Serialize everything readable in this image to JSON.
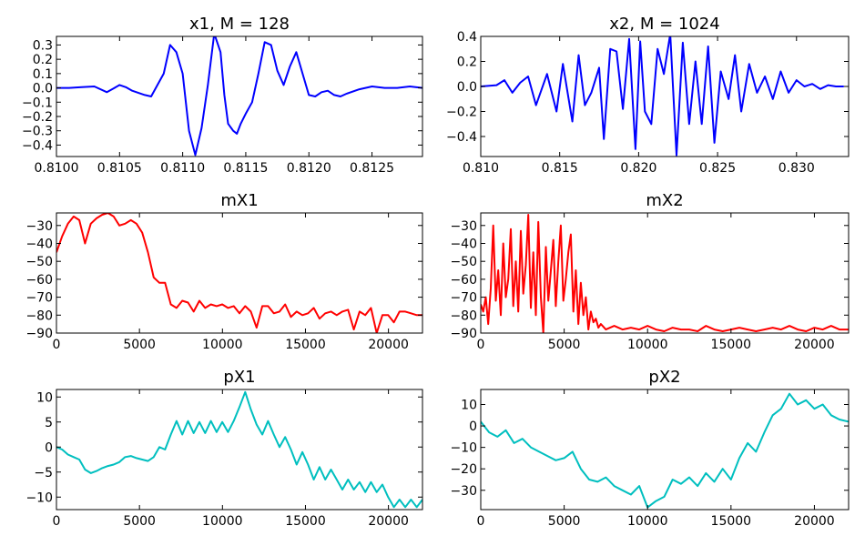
{
  "figure": {
    "background": "#ffffff"
  },
  "chart_data": [
    {
      "id": "x1",
      "type": "line",
      "title": "x1, M = 128",
      "color": "#0000ff",
      "xlim": [
        0.81,
        0.8129
      ],
      "ylim": [
        -0.48,
        0.36
      ],
      "xticks": [
        0.81,
        0.8105,
        0.811,
        0.8115,
        0.812,
        0.8125
      ],
      "xtick_labels": [
        "0.8100",
        "0.8105",
        "0.8110",
        "0.8115",
        "0.8120",
        "0.8125"
      ],
      "yticks": [
        0.3,
        0.2,
        0.1,
        0.0,
        -0.1,
        -0.2,
        -0.3,
        -0.4
      ],
      "ytick_labels": [
        "0.3",
        "0.2",
        "0.1",
        "0.0",
        "−0.1",
        "−0.2",
        "−0.3",
        "−0.4"
      ],
      "series": [
        {
          "x": [
            0.81,
            0.8101,
            0.8102,
            0.8103,
            0.8104,
            0.81045,
            0.8105,
            0.81055,
            0.8106,
            0.8107,
            0.81075,
            0.81085,
            0.8109,
            0.81095,
            0.811,
            0.81105,
            0.8111,
            0.81115,
            0.8112,
            0.81125,
            0.8113,
            0.81133,
            0.81136,
            0.8114,
            0.81143,
            0.81146,
            0.8115,
            0.81155,
            0.8116,
            0.81165,
            0.8117,
            0.81175,
            0.8118,
            0.81185,
            0.8119,
            0.81195,
            0.812,
            0.81205,
            0.8121,
            0.81215,
            0.8122,
            0.81225,
            0.8123,
            0.8124,
            0.8125,
            0.8126,
            0.8127,
            0.8128,
            0.8129
          ],
          "y": [
            0.0,
            0.0,
            0.005,
            0.01,
            -0.03,
            -0.005,
            0.02,
            0.005,
            -0.02,
            -0.05,
            -0.06,
            0.1,
            0.3,
            0.25,
            0.1,
            -0.3,
            -0.47,
            -0.28,
            0.02,
            0.38,
            0.25,
            -0.05,
            -0.25,
            -0.3,
            -0.32,
            -0.25,
            -0.18,
            -0.1,
            0.1,
            0.32,
            0.3,
            0.12,
            0.02,
            0.15,
            0.25,
            0.1,
            -0.05,
            -0.06,
            -0.03,
            -0.02,
            -0.05,
            -0.06,
            -0.04,
            -0.01,
            0.01,
            0.0,
            0.0,
            0.01,
            0.0
          ]
        }
      ]
    },
    {
      "id": "x2",
      "type": "line",
      "title": "x2, M = 1024",
      "color": "#0000ff",
      "xlim": [
        0.81,
        0.8333
      ],
      "ylim": [
        -0.56,
        0.4
      ],
      "xticks": [
        0.81,
        0.815,
        0.82,
        0.825,
        0.83
      ],
      "xtick_labels": [
        "0.810",
        "0.815",
        "0.820",
        "0.825",
        "0.830"
      ],
      "yticks": [
        0.4,
        0.2,
        0.0,
        -0.2,
        -0.4
      ],
      "ytick_labels": [
        "0.4",
        "0.2",
        "0.0",
        "−0.2",
        "−0.4"
      ],
      "series": [
        {
          "x": [
            0.81,
            0.811,
            0.8115,
            0.812,
            0.8125,
            0.813,
            0.8135,
            0.8142,
            0.8148,
            0.8152,
            0.8158,
            0.8162,
            0.8166,
            0.817,
            0.8175,
            0.8178,
            0.8182,
            0.8186,
            0.819,
            0.8194,
            0.8198,
            0.8201,
            0.8204,
            0.8208,
            0.8212,
            0.8216,
            0.822,
            0.8224,
            0.8228,
            0.8232,
            0.8236,
            0.824,
            0.8244,
            0.8248,
            0.8252,
            0.8257,
            0.8261,
            0.8265,
            0.827,
            0.8275,
            0.828,
            0.8285,
            0.829,
            0.8295,
            0.83,
            0.8305,
            0.831,
            0.8315,
            0.832,
            0.8325,
            0.833
          ],
          "y": [
            0.0,
            0.01,
            0.05,
            -0.05,
            0.03,
            0.08,
            -0.15,
            0.1,
            -0.2,
            0.18,
            -0.28,
            0.25,
            -0.15,
            -0.05,
            0.15,
            -0.42,
            0.3,
            0.28,
            -0.18,
            0.38,
            -0.5,
            0.36,
            -0.2,
            -0.3,
            0.3,
            0.1,
            0.42,
            -0.55,
            0.35,
            -0.3,
            0.2,
            -0.3,
            0.32,
            -0.45,
            0.12,
            -0.1,
            0.25,
            -0.2,
            0.18,
            -0.05,
            0.08,
            -0.1,
            0.12,
            -0.05,
            0.05,
            0.0,
            0.02,
            -0.02,
            0.01,
            0.0,
            0.0
          ]
        }
      ]
    },
    {
      "id": "mX1",
      "type": "line",
      "title": "mX1",
      "color": "#ff0000",
      "xlim": [
        0,
        22050
      ],
      "ylim": [
        -90,
        -23
      ],
      "xticks": [
        0,
        5000,
        10000,
        15000,
        20000
      ],
      "xtick_labels": [
        "0",
        "5000",
        "10000",
        "15000",
        "20000"
      ],
      "yticks": [
        -30,
        -40,
        -50,
        -60,
        -70,
        -80,
        -90
      ],
      "ytick_labels": [
        "−30",
        "−40",
        "−50",
        "−60",
        "−70",
        "−80",
        "−90"
      ],
      "series": [
        {
          "x": [
            0,
            345,
            689,
            1034,
            1378,
            1723,
            2067,
            2412,
            2756,
            3101,
            3445,
            3790,
            4134,
            4479,
            4823,
            5168,
            5512,
            5857,
            6201,
            6546,
            6890,
            7235,
            7579,
            7924,
            8268,
            8613,
            8957,
            9302,
            9646,
            9991,
            10335,
            10680,
            11024,
            11369,
            11713,
            12058,
            12402,
            12747,
            13091,
            13436,
            13780,
            14125,
            14469,
            14814,
            15158,
            15503,
            15847,
            16192,
            16536,
            16881,
            17225,
            17570,
            17914,
            18259,
            18603,
            18948,
            19292,
            19637,
            19981,
            20326,
            20670,
            21015,
            21359,
            21704,
            22050
          ],
          "y": [
            -45,
            -36,
            -29,
            -25,
            -27,
            -40,
            -29,
            -26,
            -24,
            -23,
            -25,
            -30,
            -29,
            -27,
            -29,
            -34,
            -45,
            -59,
            -62,
            -62,
            -74,
            -76,
            -72,
            -73,
            -78,
            -72,
            -76,
            -74,
            -75,
            -74,
            -76,
            -75,
            -79,
            -75,
            -78,
            -87,
            -75,
            -75,
            -79,
            -78,
            -74,
            -81,
            -78,
            -80,
            -79,
            -76,
            -82,
            -79,
            -78,
            -80,
            -78,
            -77,
            -88,
            -78,
            -80,
            -76,
            -90,
            -80,
            -80,
            -84,
            -78,
            -78,
            -79,
            -80,
            -80
          ]
        }
      ]
    },
    {
      "id": "mX2",
      "type": "line",
      "title": "mX2",
      "color": "#ff0000",
      "xlim": [
        0,
        22050
      ],
      "ylim": [
        -90,
        -23
      ],
      "xticks": [
        0,
        5000,
        10000,
        15000,
        20000
      ],
      "xtick_labels": [
        "0",
        "5000",
        "10000",
        "15000",
        "20000"
      ],
      "yticks": [
        -30,
        -40,
        -50,
        -60,
        -70,
        -80,
        -90
      ],
      "ytick_labels": [
        "−30",
        "−40",
        "−50",
        "−60",
        "−70",
        "−80",
        "−90"
      ],
      "series": [
        {
          "x": [
            0,
            150,
            300,
            450,
            600,
            750,
            900,
            1050,
            1200,
            1350,
            1500,
            1650,
            1800,
            1950,
            2100,
            2250,
            2400,
            2550,
            2700,
            2850,
            3000,
            3150,
            3300,
            3450,
            3600,
            3750,
            3900,
            4050,
            4200,
            4350,
            4500,
            4650,
            4800,
            4950,
            5100,
            5250,
            5400,
            5550,
            5700,
            5850,
            6000,
            6150,
            6300,
            6450,
            6600,
            6750,
            6900,
            7050,
            7200,
            7500,
            8000,
            8500,
            9000,
            9500,
            10000,
            10500,
            11000,
            11500,
            12000,
            12500,
            13000,
            13500,
            14000,
            14500,
            15000,
            15500,
            16000,
            16500,
            17000,
            17500,
            18000,
            18500,
            19000,
            19500,
            20000,
            20500,
            21000,
            21500,
            22050
          ],
          "y": [
            -74,
            -78,
            -70,
            -85,
            -65,
            -30,
            -72,
            -55,
            -80,
            -40,
            -70,
            -60,
            -32,
            -75,
            -50,
            -78,
            -33,
            -68,
            -52,
            -24,
            -76,
            -45,
            -80,
            -28,
            -70,
            -90,
            -42,
            -72,
            -55,
            -38,
            -75,
            -50,
            -30,
            -72,
            -60,
            -45,
            -35,
            -78,
            -55,
            -85,
            -62,
            -80,
            -70,
            -88,
            -78,
            -84,
            -82,
            -87,
            -85,
            -88,
            -86,
            -88,
            -87,
            -88,
            -86,
            -88,
            -89,
            -87,
            -88,
            -88,
            -89,
            -86,
            -88,
            -89,
            -88,
            -87,
            -88,
            -89,
            -88,
            -87,
            -88,
            -86,
            -88,
            -89,
            -87,
            -88,
            -86,
            -88,
            -88
          ]
        }
      ]
    },
    {
      "id": "pX1",
      "type": "line",
      "title": "pX1",
      "color": "#00bfbf",
      "xlim": [
        0,
        22050
      ],
      "ylim": [
        -12.5,
        11.5
      ],
      "xticks": [
        0,
        5000,
        10000,
        15000,
        20000
      ],
      "xtick_labels": [
        "0",
        "5000",
        "10000",
        "15000",
        "20000"
      ],
      "yticks": [
        10,
        5,
        0,
        -5,
        -10
      ],
      "ytick_labels": [
        "10",
        "5",
        "0",
        "−5",
        "−10"
      ],
      "series": [
        {
          "x": [
            0,
            345,
            689,
            1034,
            1378,
            1723,
            2067,
            2412,
            2756,
            3101,
            3445,
            3790,
            4134,
            4479,
            4823,
            5168,
            5512,
            5857,
            6201,
            6546,
            6890,
            7235,
            7579,
            7924,
            8268,
            8613,
            8957,
            9302,
            9646,
            9991,
            10335,
            10680,
            11024,
            11369,
            11713,
            12058,
            12402,
            12747,
            13091,
            13436,
            13780,
            14125,
            14469,
            14814,
            15158,
            15503,
            15847,
            16192,
            16536,
            16881,
            17225,
            17570,
            17914,
            18259,
            18603,
            18948,
            19292,
            19637,
            19981,
            20326,
            20670,
            21015,
            21359,
            21704,
            22050
          ],
          "y": [
            0,
            -0.5,
            -1.5,
            -2,
            -2.5,
            -4.5,
            -5.2,
            -4.8,
            -4.2,
            -3.8,
            -3.5,
            -3,
            -2,
            -1.8,
            -2.2,
            -2.5,
            -2.8,
            -2,
            0,
            -0.5,
            2.5,
            5.2,
            2.5,
            5.2,
            2.8,
            5,
            2.8,
            5.2,
            3,
            5,
            3,
            5.2,
            8,
            11,
            7.5,
            4.5,
            2.5,
            5.2,
            2.5,
            0,
            2,
            -0.5,
            -3.5,
            -1,
            -3.5,
            -6.5,
            -4,
            -6.5,
            -4.5,
            -6.5,
            -8.5,
            -6.5,
            -8.5,
            -7,
            -9,
            -7,
            -9,
            -7.5,
            -10,
            -12,
            -10.5,
            -12,
            -10.5,
            -12,
            -10.5
          ]
        }
      ]
    },
    {
      "id": "pX2",
      "type": "line",
      "title": "pX2",
      "color": "#00bfbf",
      "xlim": [
        0,
        22050
      ],
      "ylim": [
        -39,
        17
      ],
      "xticks": [
        0,
        5000,
        10000,
        15000,
        20000
      ],
      "xtick_labels": [
        "0",
        "5000",
        "10000",
        "15000",
        "20000"
      ],
      "yticks": [
        10,
        0,
        -10,
        -20,
        -30
      ],
      "ytick_labels": [
        "10",
        "0",
        "−10",
        "−20",
        "−30"
      ],
      "series": [
        {
          "x": [
            0,
            500,
            1000,
            1500,
            2000,
            2500,
            3000,
            3500,
            4000,
            4500,
            5000,
            5500,
            6000,
            6500,
            7000,
            7500,
            8000,
            8500,
            9000,
            9500,
            10000,
            10500,
            11000,
            11500,
            12000,
            12500,
            13000,
            13500,
            14000,
            14500,
            15000,
            15500,
            16000,
            16500,
            17000,
            17500,
            18000,
            18500,
            19000,
            19500,
            20000,
            20500,
            21000,
            21500,
            22050
          ],
          "y": [
            2,
            -3,
            -5,
            -2,
            -8,
            -6,
            -10,
            -12,
            -14,
            -16,
            -15,
            -12,
            -20,
            -25,
            -26,
            -24,
            -28,
            -30,
            -32,
            -28,
            -38,
            -35,
            -33,
            -25,
            -27,
            -24,
            -28,
            -22,
            -26,
            -20,
            -25,
            -15,
            -8,
            -12,
            -3,
            5,
            8,
            15,
            10,
            12,
            8,
            10,
            5,
            3,
            2
          ]
        }
      ]
    }
  ]
}
